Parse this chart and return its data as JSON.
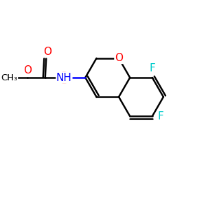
{
  "background_color": "#ffffff",
  "atom_colors": {
    "C": "#000000",
    "O": "#ff0000",
    "N": "#0000ff",
    "F": "#00cccc"
  },
  "highlight_color": "#ff6666",
  "highlight_alpha": 0.55,
  "bond_color": "#000000",
  "bond_width": 1.8,
  "font_size_atoms": 11,
  "font_size_small": 9.5
}
